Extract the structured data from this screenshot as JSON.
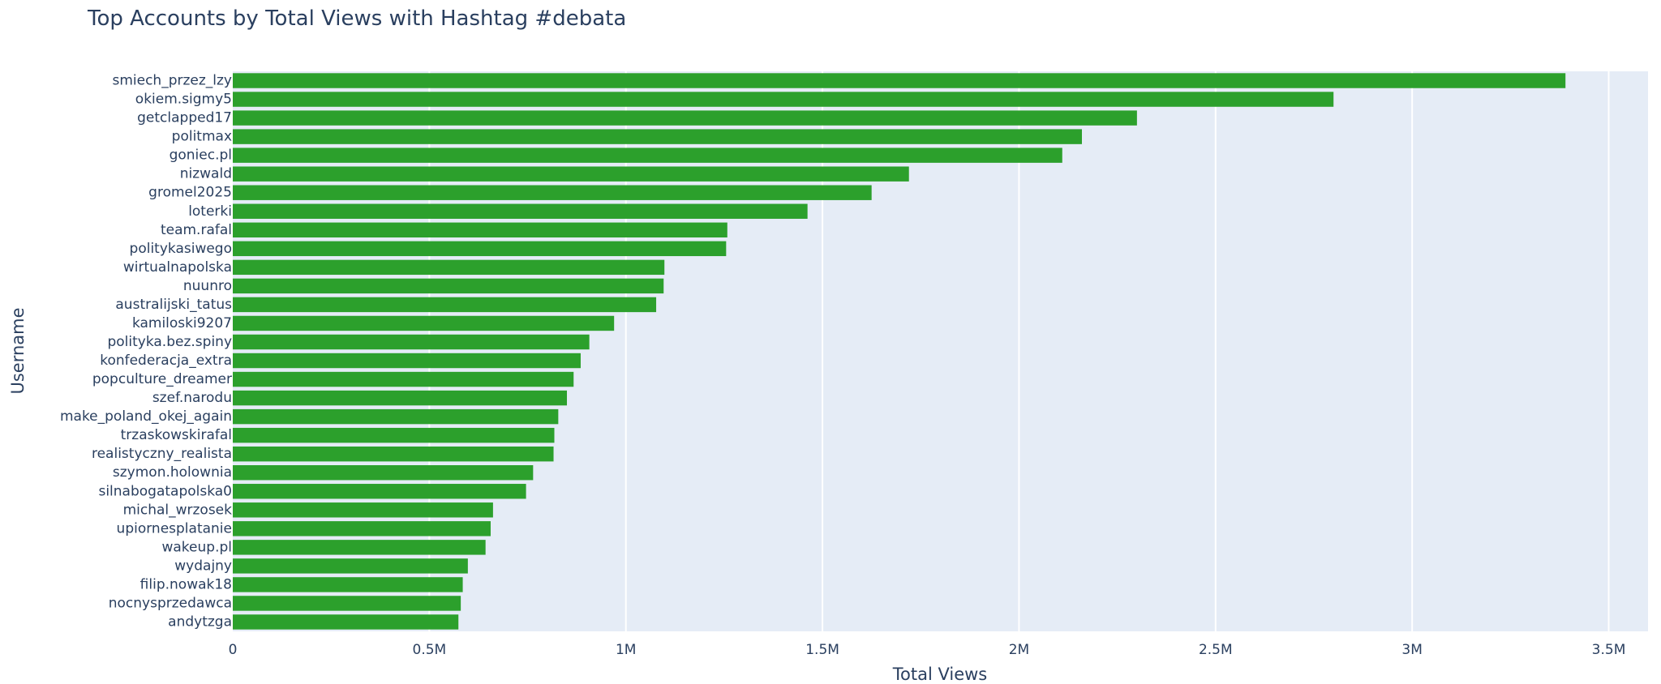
{
  "chart_data": {
    "type": "bar",
    "orientation": "horizontal",
    "title": "Top Accounts by Total Views with Hashtag #debata",
    "xlabel": "Total Views",
    "ylabel": "Username",
    "xlim": [
      0,
      3600000
    ],
    "xticks": [
      {
        "value": 0,
        "label": "0"
      },
      {
        "value": 500000,
        "label": "0.5M"
      },
      {
        "value": 1000000,
        "label": "1M"
      },
      {
        "value": 1500000,
        "label": "1.5M"
      },
      {
        "value": 2000000,
        "label": "2M"
      },
      {
        "value": 2500000,
        "label": "2.5M"
      },
      {
        "value": 3000000,
        "label": "3M"
      },
      {
        "value": 3500000,
        "label": "3.5M"
      }
    ],
    "grid": true,
    "bar_color": "#2ca02c",
    "plot_bg": "#e5ecf6",
    "categories": [
      "smiech_przez_lzy",
      "okiem.sigmy5",
      "getclapped17",
      "politmax",
      "goniec.pl",
      "nizwald",
      "gromel2025",
      "loterki",
      "team.rafal",
      "politykasiwego",
      "wirtualnapolska",
      "nuunro",
      "australijski_tatus",
      "kamiloski9207",
      "polityka.bez.spiny",
      "konfederacja_extra",
      "popculture_dreamer",
      "szef.narodu",
      "make_poland_okej_again",
      "trzaskowskirafal",
      "realistyczny_realista",
      "szymon.holownia",
      "silnabogatapolska0",
      "michal_wrzosek",
      "upiornesplatanie",
      "wakeup.pl",
      "wydajny",
      "filip.nowak18",
      "nocnysprzedawca",
      "andytzga"
    ],
    "values": [
      3390000,
      2800000,
      2300000,
      2160000,
      2110000,
      1720000,
      1625000,
      1462000,
      1258000,
      1255000,
      1098000,
      1096000,
      1077000,
      970000,
      907000,
      885000,
      867000,
      850000,
      828000,
      818000,
      816000,
      764000,
      746000,
      662000,
      656000,
      643000,
      598000,
      585000,
      580000,
      574000
    ]
  }
}
